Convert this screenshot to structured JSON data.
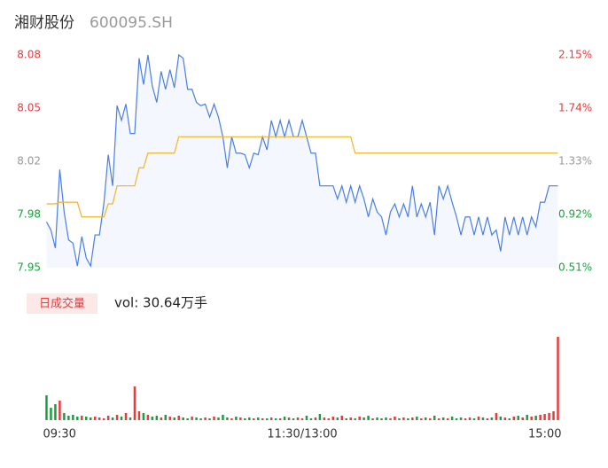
{
  "header": {
    "name": "湘财股份",
    "code": "600095.SH"
  },
  "volume_button": "日成交量",
  "volume_text": "vol: 30.64万手",
  "chart_data": {
    "type": "line",
    "x": [
      0,
      2,
      4,
      6,
      8,
      10,
      12,
      14,
      16,
      18,
      20,
      22,
      24,
      26,
      28,
      30,
      32,
      34,
      36,
      38,
      40,
      42,
      44,
      46,
      48,
      50,
      52,
      54,
      56,
      58,
      60,
      62,
      64,
      66,
      68,
      70,
      72,
      74,
      76,
      78,
      80,
      82,
      84,
      86,
      88,
      90,
      92,
      94,
      96,
      98,
      100,
      102,
      104,
      106,
      108,
      110,
      112,
      114,
      116,
      118,
      120,
      122,
      124,
      126,
      128,
      130,
      132,
      134,
      136,
      138,
      140,
      142,
      144,
      146,
      148,
      150,
      152,
      154,
      156,
      158,
      160,
      162,
      164,
      166,
      168,
      170,
      172,
      174,
      176,
      178,
      180,
      182,
      184,
      186,
      188,
      190,
      192,
      194,
      196,
      198,
      200,
      202,
      204,
      206,
      208,
      210,
      212,
      214,
      216,
      218,
      220,
      222,
      224,
      226,
      228,
      230,
      232
    ],
    "xlim": [
      -1,
      233
    ],
    "xticks": [
      {
        "value": 0,
        "label": "09:30"
      },
      {
        "value": 116,
        "label": "11:30/13:00"
      },
      {
        "value": 232,
        "label": "15:00"
      }
    ],
    "ylim": [
      7.95,
      8.08
    ],
    "yticks": [
      {
        "value": 7.95,
        "label": "7.95"
      },
      {
        "value": 7.9825,
        "label": "7.98"
      },
      {
        "value": 8.015,
        "label": "8.02"
      },
      {
        "value": 8.0475,
        "label": "8.05"
      },
      {
        "value": 8.08,
        "label": "8.08"
      }
    ],
    "y2lim": [
      0.51,
      2.15
    ],
    "y2ticks": [
      {
        "value": 0.51,
        "label": "0.51%"
      },
      {
        "value": 0.92,
        "label": "0.92%"
      },
      {
        "value": 1.33,
        "label": "1.33%"
      },
      {
        "value": 1.74,
        "label": "1.74%"
      },
      {
        "value": 2.15,
        "label": "2.15%"
      }
    ],
    "tick_colors": [
      "#1a9f3c",
      "#1a9f3c",
      "#999999",
      "#e63c3c",
      "#e63c3c"
    ],
    "series": [
      {
        "name": "price",
        "color": "#4a7ee6",
        "values": [
          7.978,
          7.973,
          7.962,
          8.01,
          7.984,
          7.967,
          7.965,
          7.951,
          7.969,
          7.956,
          7.951,
          7.97,
          7.97,
          7.989,
          8.019,
          8.0,
          8.049,
          8.04,
          8.05,
          8.032,
          8.032,
          8.078,
          8.062,
          8.08,
          8.061,
          8.051,
          8.07,
          8.059,
          8.071,
          8.06,
          8.08,
          8.078,
          8.059,
          8.059,
          8.051,
          8.049,
          8.05,
          8.042,
          8.05,
          8.042,
          8.03,
          8.011,
          8.03,
          8.02,
          8.02,
          8.019,
          8.011,
          8.02,
          8.019,
          8.03,
          8.022,
          8.04,
          8.03,
          8.04,
          8.03,
          8.04,
          8.03,
          8.03,
          8.04,
          8.03,
          8.02,
          8.02,
          8.0,
          8.0,
          8.0,
          8.0,
          7.992,
          8.0,
          7.99,
          8.0,
          7.99,
          8.0,
          7.992,
          7.981,
          7.992,
          7.984,
          7.981,
          7.97,
          7.984,
          7.989,
          7.981,
          7.989,
          7.981,
          8.0,
          7.981,
          7.989,
          7.981,
          7.99,
          7.97,
          8.0,
          7.992,
          8.0,
          7.99,
          7.981,
          7.97,
          7.981,
          7.981,
          7.97,
          7.981,
          7.97,
          7.981,
          7.97,
          7.973,
          7.96,
          7.981,
          7.97,
          7.981,
          7.97,
          7.981,
          7.97,
          7.981,
          7.975,
          7.99,
          7.99,
          8.0,
          8.0,
          8.0
        ]
      },
      {
        "name": "average",
        "color": "#f0b429",
        "values": [
          7.989,
          7.989,
          7.989,
          7.99,
          7.99,
          7.99,
          7.99,
          7.99,
          7.981,
          7.981,
          7.981,
          7.981,
          7.981,
          7.981,
          7.989,
          7.989,
          8.0,
          8.0,
          8.0,
          8.0,
          8.0,
          8.011,
          8.011,
          8.02,
          8.02,
          8.02,
          8.02,
          8.02,
          8.02,
          8.02,
          8.03,
          8.03,
          8.03,
          8.03,
          8.03,
          8.03,
          8.03,
          8.03,
          8.03,
          8.03,
          8.03,
          8.03,
          8.03,
          8.03,
          8.03,
          8.03,
          8.03,
          8.03,
          8.03,
          8.03,
          8.03,
          8.03,
          8.03,
          8.03,
          8.03,
          8.03,
          8.03,
          8.03,
          8.03,
          8.03,
          8.03,
          8.03,
          8.03,
          8.03,
          8.03,
          8.03,
          8.03,
          8.03,
          8.03,
          8.03,
          8.02,
          8.02,
          8.02,
          8.02,
          8.02,
          8.02,
          8.02,
          8.02,
          8.02,
          8.02,
          8.02,
          8.02,
          8.02,
          8.02,
          8.02,
          8.02,
          8.02,
          8.02,
          8.02,
          8.02,
          8.02,
          8.02,
          8.02,
          8.02,
          8.02,
          8.02,
          8.02,
          8.02,
          8.02,
          8.02,
          8.02,
          8.02,
          8.02,
          8.02,
          8.02,
          8.02,
          8.02,
          8.02,
          8.02,
          8.02,
          8.02,
          8.02,
          8.02,
          8.02,
          8.02,
          8.02,
          8.02
        ]
      }
    ],
    "volume": {
      "ylim": [
        0,
        100
      ],
      "up_color": "#e63c3c",
      "down_color": "#1a9f3c",
      "values": [
        28,
        14,
        18,
        22,
        8,
        5,
        6,
        4,
        5,
        4,
        3,
        4,
        3,
        2,
        5,
        3,
        6,
        4,
        8,
        3,
        38,
        10,
        8,
        6,
        4,
        5,
        3,
        6,
        4,
        3,
        5,
        3,
        2,
        4,
        3,
        2,
        3,
        2,
        4,
        3,
        6,
        3,
        2,
        4,
        3,
        2,
        3,
        2,
        3,
        2,
        2,
        3,
        2,
        2,
        4,
        3,
        2,
        3,
        2,
        5,
        2,
        3,
        7,
        3,
        2,
        4,
        3,
        5,
        2,
        3,
        2,
        4,
        3,
        5,
        2,
        3,
        2,
        3,
        2,
        4,
        2,
        3,
        2,
        3,
        4,
        2,
        3,
        2,
        5,
        2,
        3,
        2,
        4,
        2,
        3,
        2,
        3,
        2,
        4,
        3,
        2,
        3,
        8,
        4,
        3,
        2,
        4,
        5,
        3,
        6,
        4,
        5,
        6,
        7,
        8,
        10,
        94
      ]
    }
  }
}
